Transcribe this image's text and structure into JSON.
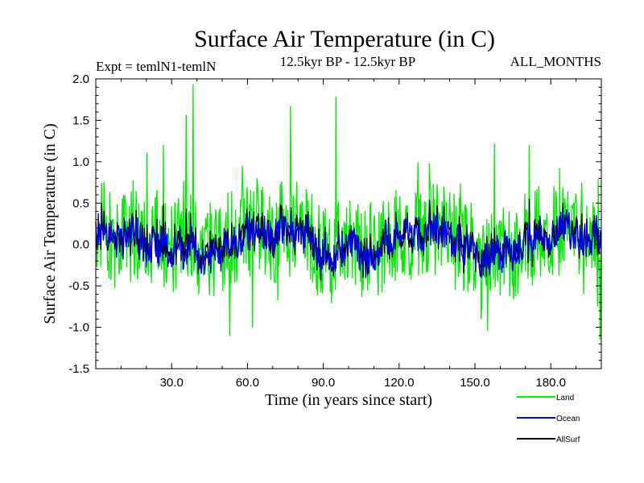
{
  "chart_data": {
    "type": "line",
    "title": "Surface Air Temperature (in C)",
    "subtitle_left": "Expt = temlN1-temlN",
    "subtitle_center": "12.5kyr BP - 12.5kyr BP",
    "subtitle_right": "ALL_MONTHS",
    "xlabel": "Time (in years since start)",
    "ylabel": "Surface Air Temperature (in C)",
    "xlim": [
      0,
      200
    ],
    "ylim": [
      -1.5,
      2.0
    ],
    "x_ticks": [
      30,
      60,
      90,
      120,
      150,
      180
    ],
    "x_tick_labels": [
      "30.0",
      "60.0",
      "90.0",
      "120.0",
      "150.0",
      "180.0"
    ],
    "y_ticks": [
      -1.5,
      -1.0,
      -0.5,
      0.0,
      0.5,
      1.0,
      1.5,
      2.0
    ],
    "y_tick_labels": [
      "-1.5",
      "-1.0",
      "-0.5",
      "0.0",
      "0.5",
      "1.0",
      "1.5",
      "2.0"
    ],
    "grid": false,
    "legend_position": "bottom-right",
    "sampling": "monthly (12 per year), series shown approximated at 3-month resolution",
    "series": [
      {
        "name": "Land",
        "color": "#00ee00",
        "step_years": 0.25,
        "amplitude_note": "high variance, approx range -1.1 to 1.9",
        "peaks": [
          {
            "x": 38.5,
            "y": 1.93
          },
          {
            "x": 95.0,
            "y": 1.78
          },
          {
            "x": 77.0,
            "y": 1.67
          }
        ],
        "troughs": [
          {
            "x": 53.0,
            "y": -1.1
          },
          {
            "x": 62.0,
            "y": -1.0
          },
          {
            "x": 155.0,
            "y": -1.04
          },
          {
            "x": 199.5,
            "y": -1.15
          }
        ]
      },
      {
        "name": "Ocean",
        "color": "#0000ee",
        "step_years": 0.25,
        "amplitude_note": "low variance, approx range -0.5 to 0.4"
      },
      {
        "name": "AllSurf",
        "color": "#000000",
        "step_years": 0.25,
        "amplitude_note": "mostly hidden beneath Ocean series"
      }
    ]
  }
}
